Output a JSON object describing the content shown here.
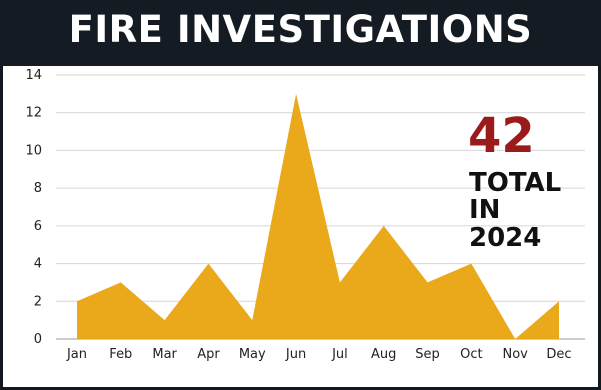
{
  "title": "FIRE INVESTIGATIONS",
  "callout": {
    "number": "42",
    "line1": "TOTAL",
    "line2": "IN",
    "line3": "2024"
  },
  "colors": {
    "area": "#eaa81b",
    "title_bar": "#141b22",
    "callout_number": "#9b1b1b",
    "grid": "#d6d6d6"
  },
  "chart_data": {
    "type": "area",
    "title": "FIRE INVESTIGATIONS",
    "categories": [
      "Jan",
      "Feb",
      "Mar",
      "Apr",
      "May",
      "Jun",
      "Jul",
      "Aug",
      "Sep",
      "Oct",
      "Nov",
      "Dec"
    ],
    "values": [
      2,
      3,
      1,
      4,
      1,
      13,
      3,
      6,
      3,
      4,
      0,
      2
    ],
    "ylim": [
      0,
      14
    ],
    "yticks": [
      0,
      2,
      4,
      6,
      8,
      10,
      12,
      14
    ],
    "grid": true,
    "legend": "none"
  }
}
